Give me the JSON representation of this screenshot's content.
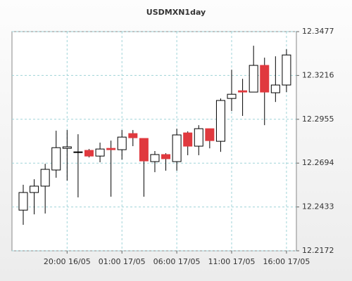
{
  "chart_data": {
    "type": "candlestick",
    "title": "USDMXN1day",
    "categories": [
      null,
      null,
      null,
      null,
      "20:00 16/05",
      null,
      null,
      null,
      null,
      "01:00 17/05",
      null,
      null,
      null,
      null,
      "06:00 17/05",
      null,
      null,
      null,
      null,
      "11:00 17/05",
      null,
      null,
      null,
      null,
      "16:00 17/05"
    ],
    "open": [
      12.2414,
      12.2519,
      12.2557,
      12.2653,
      12.2782,
      12.2757,
      12.277,
      12.2736,
      12.2782,
      12.2774,
      12.287,
      12.2841,
      12.2703,
      12.2745,
      12.2703,
      12.2874,
      12.2795,
      12.2899,
      12.2824,
      12.3079,
      12.3125,
      12.3117,
      12.3276,
      12.3113,
      12.3159
    ],
    "high": [
      12.2565,
      12.2598,
      12.269,
      12.2887,
      12.2891,
      12.2866,
      12.2778,
      12.2816,
      12.2828,
      12.2891,
      12.2891,
      12.2841,
      12.2766,
      12.2753,
      12.2899,
      12.2883,
      12.292,
      12.2891,
      12.3079,
      12.325,
      12.3196,
      12.3393,
      12.3322,
      12.333,
      12.3372
    ],
    "low": [
      12.2327,
      12.2389,
      12.2394,
      12.2607,
      12.259,
      12.249,
      12.2728,
      12.2699,
      12.2494,
      12.2715,
      12.2795,
      12.2494,
      12.264,
      12.2649,
      12.2649,
      12.2741,
      12.2741,
      12.2782,
      12.2761,
      12.3004,
      12.2975,
      12.3117,
      12.292,
      12.3058,
      12.3117
    ],
    "close": [
      12.2519,
      12.2557,
      12.2657,
      12.2786,
      12.2791,
      12.2761,
      12.2736,
      12.2778,
      12.2774,
      12.2849,
      12.2845,
      12.2707,
      12.2745,
      12.272,
      12.2862,
      12.2795,
      12.2899,
      12.2828,
      12.3067,
      12.3104,
      12.3117,
      12.3276,
      12.3117,
      12.3159,
      12.3338
    ],
    "up_color": "#ffffff",
    "down_color": "#e0393e",
    "ylim": [
      12.2172,
      12.3477
    ],
    "yticks": [
      12.2172,
      12.2433,
      12.2694,
      12.2955,
      12.3216,
      12.3477
    ],
    "grid": true
  }
}
